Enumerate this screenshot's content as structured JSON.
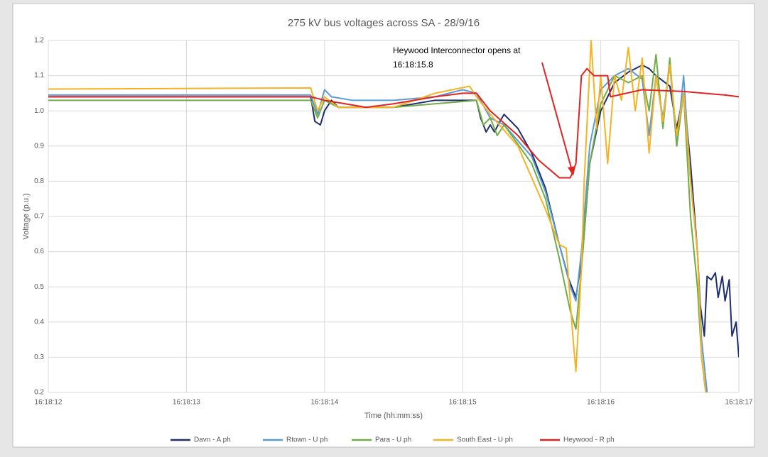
{
  "chart_data": {
    "type": "line",
    "title": "275 kV bus voltages across SA - 28/9/16",
    "x_label": "Time (hh:mm:ss)",
    "y_label": "Voltage (p.u.)",
    "annotation": [
      "Heywood Interconnector opens at",
      "16:18:15.8"
    ],
    "xlim": [
      12,
      17
    ],
    "xticks": [
      {
        "value": 12,
        "label": "16:18:12"
      },
      {
        "value": 13,
        "label": "16:18:13"
      },
      {
        "value": 14,
        "label": "16:18:14"
      },
      {
        "value": 15,
        "label": "16:18:15"
      },
      {
        "value": 16,
        "label": "16:18:16"
      },
      {
        "value": 17,
        "label": "16:18:17"
      }
    ],
    "ylim": [
      0.2,
      1.2
    ],
    "yticks": [
      0.2,
      0.3,
      0.4,
      0.5,
      0.6,
      0.7,
      0.8,
      0.9,
      {
        "value": 1,
        "label": "1.0"
      },
      1.1,
      1.2
    ],
    "grid": true,
    "legend": "bottom",
    "series": [
      {
        "name": "Davn - A ph",
        "color": "#1f2f6e",
        "x": [
          12,
          13.9,
          13.93,
          13.97,
          14.0,
          14.05,
          14.1,
          14.3,
          14.5,
          14.8,
          15.1,
          15.13,
          15.17,
          15.2,
          15.23,
          15.27,
          15.3,
          15.4,
          15.5,
          15.6,
          15.7,
          15.77,
          15.82,
          15.87,
          15.92,
          16.0,
          16.1,
          16.2,
          16.3,
          16.35,
          16.4,
          16.5,
          16.55,
          16.6,
          16.65,
          16.7,
          16.72,
          16.75,
          16.77,
          16.8,
          16.83,
          16.85,
          16.88,
          16.9,
          16.93,
          16.95,
          16.98,
          17.0
        ],
        "values": [
          1.04,
          1.04,
          0.97,
          0.96,
          1.0,
          1.03,
          1.01,
          1.01,
          1.01,
          1.03,
          1.03,
          0.98,
          0.94,
          0.96,
          0.94,
          0.97,
          0.99,
          0.95,
          0.88,
          0.78,
          0.62,
          0.52,
          0.47,
          0.6,
          0.85,
          1.0,
          1.08,
          1.11,
          1.13,
          1.12,
          1.1,
          1.07,
          0.95,
          1.05,
          0.85,
          0.6,
          0.45,
          0.36,
          0.53,
          0.52,
          0.54,
          0.47,
          0.53,
          0.46,
          0.52,
          0.36,
          0.4,
          0.3
        ]
      },
      {
        "name": "Rtown - U ph",
        "color": "#5b9bd5",
        "x": [
          12,
          13.9,
          13.95,
          14.0,
          14.05,
          14.2,
          14.5,
          14.8,
          15.0,
          15.1,
          15.2,
          15.3,
          15.5,
          15.6,
          15.7,
          15.78,
          15.82,
          15.86,
          15.92,
          16.0,
          16.1,
          16.2,
          16.3,
          16.35,
          16.4,
          16.45,
          16.5,
          16.55,
          16.6,
          16.65,
          16.7,
          16.73,
          16.77
        ],
        "values": [
          1.045,
          1.045,
          0.99,
          1.06,
          1.04,
          1.03,
          1.03,
          1.04,
          1.06,
          1.05,
          0.98,
          0.96,
          0.87,
          0.77,
          0.62,
          0.5,
          0.46,
          0.6,
          0.9,
          1.06,
          1.1,
          1.12,
          1.09,
          0.93,
          1.1,
          0.98,
          1.13,
          0.9,
          1.1,
          0.8,
          0.6,
          0.35,
          0.2
        ]
      },
      {
        "name": "Para - U ph",
        "color": "#70ad47",
        "x": [
          12,
          13.9,
          13.95,
          14.0,
          14.1,
          14.5,
          14.8,
          15.1,
          15.15,
          15.2,
          15.25,
          15.3,
          15.5,
          15.6,
          15.7,
          15.78,
          15.82,
          15.86,
          15.92,
          16.0,
          16.1,
          16.2,
          16.3,
          16.35,
          16.4,
          16.45,
          16.5,
          16.55,
          16.6,
          16.65,
          16.7,
          16.73,
          16.76
        ],
        "values": [
          1.03,
          1.03,
          0.98,
          1.03,
          1.01,
          1.01,
          1.02,
          1.03,
          0.96,
          0.98,
          0.93,
          0.96,
          0.85,
          0.75,
          0.58,
          0.43,
          0.38,
          0.55,
          0.85,
          1.02,
          1.1,
          1.08,
          1.1,
          1.0,
          1.16,
          0.95,
          1.15,
          0.9,
          1.05,
          0.7,
          0.5,
          0.3,
          0.2
        ]
      },
      {
        "name": "South East - U ph",
        "color": "#f5b324",
        "x": [
          12,
          13.9,
          13.95,
          14.0,
          14.1,
          14.5,
          14.8,
          15.05,
          15.1,
          15.2,
          15.4,
          15.6,
          15.7,
          15.75,
          15.8,
          15.82,
          15.86,
          15.88,
          15.93,
          15.97,
          16.0,
          16.05,
          16.1,
          16.15,
          16.2,
          16.25,
          16.3,
          16.35,
          16.4,
          16.45,
          16.5,
          16.55,
          16.6,
          16.65,
          16.7,
          16.73,
          16.76
        ],
        "values": [
          1.062,
          1.065,
          1.0,
          1.04,
          1.01,
          1.01,
          1.05,
          1.07,
          1.04,
          0.99,
          0.9,
          0.72,
          0.62,
          0.61,
          0.35,
          0.26,
          0.55,
          0.8,
          1.2,
          0.95,
          1.1,
          0.85,
          1.1,
          1.03,
          1.18,
          1.0,
          1.15,
          0.88,
          1.1,
          0.97,
          1.13,
          0.93,
          1.05,
          0.8,
          0.6,
          0.3,
          0.2
        ]
      },
      {
        "name": "Heywood - R ph",
        "color": "#e02424",
        "x": [
          12,
          13.9,
          14.0,
          14.3,
          14.5,
          14.8,
          15.0,
          15.1,
          15.2,
          15.4,
          15.55,
          15.7,
          15.78,
          15.82,
          15.86,
          15.9,
          15.95,
          16.0,
          16.05,
          16.07,
          16.3,
          16.6,
          16.9,
          17.0
        ],
        "values": [
          1.04,
          1.04,
          1.03,
          1.01,
          1.02,
          1.04,
          1.05,
          1.05,
          1.0,
          0.93,
          0.86,
          0.81,
          0.81,
          0.85,
          1.1,
          1.12,
          1.1,
          1.1,
          1.1,
          1.04,
          1.06,
          1.055,
          1.045,
          1.04
        ]
      }
    ]
  }
}
